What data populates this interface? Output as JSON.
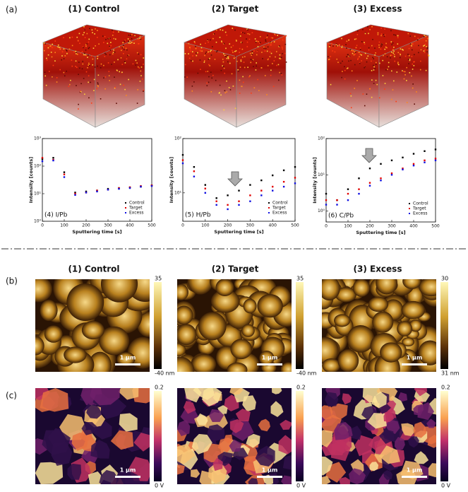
{
  "figure": {
    "panel_labels": [
      "(a)",
      "(b)",
      "(c)"
    ],
    "tof_titles": [
      "(1) Control",
      "(2) Target",
      "(3) Excess"
    ],
    "afm_titles": [
      "(1) Control",
      "(2) Target",
      "(3) Excess"
    ],
    "afm": [
      {
        "max": "35",
        "min": "-40 nm",
        "scale": "1 µm"
      },
      {
        "max": "35",
        "min": "-40 nm",
        "scale": "1 µm"
      },
      {
        "max": "30",
        "min": "31 nm",
        "scale": "1 µm"
      }
    ],
    "kpfm": [
      {
        "max": "0.2",
        "min": "0 V",
        "scale": "1 µm"
      },
      {
        "max": "0.2",
        "min": "0 V",
        "scale": "1 µm"
      },
      {
        "max": "0.2",
        "min": "0 V",
        "scale": "1 µm"
      }
    ]
  },
  "chart_data": [
    {
      "type": "scatter",
      "annotation": "(4) I/Pb",
      "x_label": "Sputtering time [s]",
      "y_label": "Intensity [counts]",
      "log_y": true,
      "legend": "lower right",
      "x": [
        0,
        50,
        100,
        150,
        200,
        250,
        300,
        350,
        400,
        450,
        500
      ],
      "series": [
        {
          "name": "Control",
          "color": "#000000",
          "values": [
            180,
            200,
            60,
            11,
            12,
            13,
            15,
            16,
            17,
            18,
            20
          ]
        },
        {
          "name": "Target",
          "color": "#e00000",
          "values": [
            200,
            170,
            50,
            10,
            11,
            13,
            14,
            16,
            17,
            19,
            20
          ]
        },
        {
          "name": "Excess",
          "color": "#1010e0",
          "values": [
            150,
            160,
            40,
            9,
            11,
            12,
            14,
            15,
            16,
            18,
            19
          ]
        }
      ],
      "xlim": [
        0,
        500
      ],
      "xticks": [
        0,
        100,
        200,
        300,
        400,
        500
      ],
      "ylim": [
        1,
        1000
      ],
      "yticks": [
        {
          "value": 1,
          "label": "10⁰"
        },
        {
          "value": 10,
          "label": "10¹"
        },
        {
          "value": 100,
          "label": "10²"
        },
        {
          "value": 1000,
          "label": "10³"
        }
      ]
    },
    {
      "type": "scatter",
      "annotation": "(5) H/Pb",
      "x_label": "Sputtering time [s]",
      "y_label": "Intensity [counts]",
      "log_y": true,
      "legend": "lower right",
      "x": [
        0,
        50,
        100,
        150,
        200,
        250,
        300,
        350,
        400,
        450,
        500
      ],
      "series": [
        {
          "name": "Control",
          "color": "#000000",
          "values": [
            50,
            30,
            14,
            8,
            9,
            11,
            14,
            17,
            21,
            26,
            30
          ]
        },
        {
          "name": "Target",
          "color": "#e00000",
          "values": [
            40,
            25,
            12,
            7,
            6,
            7,
            9,
            11,
            13,
            16,
            19
          ]
        },
        {
          "name": "Excess",
          "color": "#1010e0",
          "values": [
            35,
            20,
            10,
            6,
            5,
            6,
            7,
            9,
            11,
            13,
            15
          ]
        }
      ],
      "xlim": [
        0,
        500
      ],
      "xticks": [
        0,
        100,
        200,
        300,
        400,
        500
      ],
      "ylim": [
        3,
        100
      ],
      "yticks": [
        {
          "value": 10,
          "label": "10¹"
        },
        {
          "value": 100,
          "label": "10²"
        }
      ]
    },
    {
      "type": "scatter",
      "annotation": "(6) C/Pb",
      "x_label": "Sputtering time [s]",
      "y_label": "Intensity [counts]",
      "log_y": true,
      "legend": "lower right",
      "x": [
        0,
        50,
        100,
        150,
        200,
        250,
        300,
        350,
        400,
        450,
        500
      ],
      "series": [
        {
          "name": "Control",
          "color": "#000000",
          "values": [
            3,
            2,
            4,
            8,
            15,
            20,
            25,
            30,
            38,
            45,
            50
          ]
        },
        {
          "name": "Target",
          "color": "#e00000",
          "values": [
            2,
            2,
            3,
            4,
            6,
            8,
            11,
            15,
            20,
            25,
            28
          ]
        },
        {
          "name": "Excess",
          "color": "#1010e0",
          "values": [
            1.5,
            1.5,
            2,
            3,
            5,
            7,
            10,
            14,
            18,
            22,
            25
          ]
        }
      ],
      "xlim": [
        0,
        500
      ],
      "xticks": [
        0,
        100,
        200,
        300,
        400,
        500
      ],
      "ylim": [
        0.5,
        100
      ],
      "yticks": [
        {
          "value": 1,
          "label": "10⁰"
        },
        {
          "value": 10,
          "label": "10¹"
        },
        {
          "value": 100,
          "label": "10²"
        }
      ]
    }
  ]
}
